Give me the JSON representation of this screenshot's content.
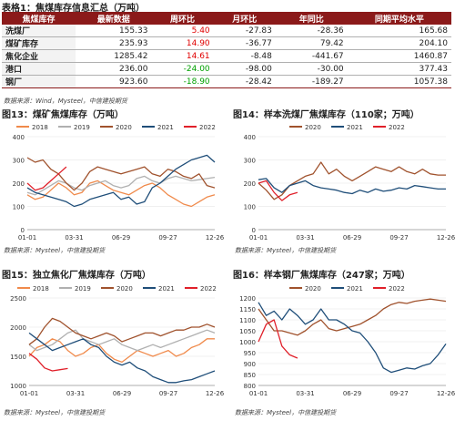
{
  "table": {
    "title": "表格1：焦煤库存信息汇总（万吨）",
    "headers": [
      "焦煤库存",
      "最新数据",
      "周环比",
      "月环比",
      "年同比",
      "同期平均水平"
    ],
    "rows": [
      {
        "name": "洗煤厂",
        "cells": [
          "155.33",
          "5.40",
          "-27.83",
          "-28.36",
          "165.68"
        ],
        "wow_color": "red"
      },
      {
        "name": "煤矿库存",
        "cells": [
          "235.93",
          "14.90",
          "-36.77",
          "79.42",
          "204.10"
        ],
        "wow_color": "red"
      },
      {
        "name": "焦化企业",
        "cells": [
          "1285.42",
          "14.61",
          "-8.48",
          "-441.67",
          "1460.87"
        ],
        "wow_color": "red"
      },
      {
        "name": "港口",
        "cells": [
          "236.00",
          "-24.00",
          "-98.00",
          "-30.00",
          "377.43"
        ],
        "wow_color": "green"
      },
      {
        "name": "钢厂",
        "cells": [
          "923.60",
          "-18.90",
          "-28.42",
          "-189.27",
          "1057.38"
        ],
        "wow_color": "green"
      }
    ],
    "source": "数据来源：Wind，Mysteel，中信建投期货"
  },
  "figures": [
    {
      "title": "图13：煤矿焦煤库存（万吨）",
      "source": "数据来源：Mysteel，中信建投期货"
    },
    {
      "title": "图14：样本洗煤厂焦煤库存（110家；万吨）",
      "source": "数据来源：Mysteel，中信建投期货"
    },
    {
      "title": "图15：独立焦化厂焦煤库存（万吨）",
      "source": "数据来源：Mysteel，中信建投期货"
    },
    {
      "title": "图16：样本钢厂焦煤库存（247家；万吨）",
      "source": "数据来源：Mysteel，中信建投期货"
    }
  ],
  "colors": {
    "2018": "#f08a4b",
    "2019": "#b0b0b0",
    "2020": "#a0522d",
    "2021": "#1f4e79",
    "2022": "#e0202a"
  },
  "chart_data": [
    {
      "id": "fig13",
      "type": "line",
      "x_ticks": [
        "01-01",
        "03-31",
        "06-29",
        "09-27",
        "12-26"
      ],
      "ylim": [
        0,
        400
      ],
      "y_ticks": [
        0,
        100,
        200,
        300,
        400
      ],
      "legend": [
        "2018",
        "2019",
        "2020",
        "2021",
        "2022"
      ],
      "legend_position": "top",
      "series": [
        {
          "name": "2018",
          "values": [
            150,
            130,
            140,
            170,
            200,
            180,
            150,
            160,
            200,
            210,
            190,
            170,
            160,
            150,
            170,
            190,
            200,
            180,
            150,
            130,
            110,
            100,
            120,
            140,
            150
          ]
        },
        {
          "name": "2019",
          "values": [
            160,
            150,
            170,
            190,
            210,
            200,
            180,
            170,
            190,
            200,
            210,
            190,
            180,
            190,
            220,
            230,
            210,
            200,
            220,
            230,
            220,
            210,
            215,
            220,
            225
          ]
        },
        {
          "name": "2020",
          "values": [
            310,
            290,
            300,
            260,
            240,
            200,
            170,
            200,
            250,
            270,
            260,
            250,
            240,
            250,
            260,
            270,
            240,
            230,
            260,
            250,
            230,
            220,
            240,
            190,
            180
          ]
        },
        {
          "name": "2021",
          "values": [
            180,
            160,
            150,
            140,
            130,
            120,
            100,
            110,
            130,
            140,
            150,
            160,
            130,
            140,
            110,
            120,
            180,
            200,
            230,
            260,
            280,
            300,
            310,
            320,
            290
          ]
        },
        {
          "name": "2022",
          "values": [
            200,
            170,
            180,
            210,
            240,
            270
          ]
        }
      ]
    },
    {
      "id": "fig14",
      "type": "line",
      "x_ticks": [
        "01-01",
        "03-31",
        "06-29",
        "09-27",
        "12-26"
      ],
      "ylim": [
        0,
        400
      ],
      "y_ticks": [
        0,
        100,
        200,
        300,
        400
      ],
      "legend": [
        "2020",
        "2021",
        "2022"
      ],
      "legend_position": "top",
      "series": [
        {
          "name": "2020",
          "values": [
            200,
            170,
            130,
            150,
            190,
            210,
            230,
            240,
            290,
            240,
            260,
            230,
            210,
            230,
            250,
            270,
            260,
            250,
            270,
            250,
            240,
            260,
            240,
            235,
            235
          ]
        },
        {
          "name": "2021",
          "values": [
            215,
            220,
            180,
            160,
            190,
            200,
            210,
            190,
            180,
            175,
            170,
            160,
            155,
            170,
            160,
            175,
            165,
            170,
            180,
            175,
            190,
            185,
            180,
            175,
            175
          ]
        },
        {
          "name": "2022",
          "values": [
            200,
            210,
            160,
            125,
            150,
            160
          ]
        }
      ]
    },
    {
      "id": "fig15",
      "type": "line",
      "x_ticks": [
        "01-01",
        "03-31",
        "06-29",
        "09-27",
        "12-26"
      ],
      "ylim": [
        1000,
        2500
      ],
      "y_ticks": [
        1000,
        1500,
        2000,
        2500
      ],
      "legend": [
        "2018",
        "2019",
        "2020",
        "2021",
        "2022"
      ],
      "legend_position": "top",
      "series": [
        {
          "name": "2018",
          "values": [
            1500,
            1650,
            1700,
            1800,
            1750,
            1600,
            1500,
            1550,
            1650,
            1700,
            1550,
            1450,
            1400,
            1500,
            1600,
            1550,
            1500,
            1550,
            1600,
            1500,
            1550,
            1650,
            1700,
            1800,
            1800
          ]
        },
        {
          "name": "2019",
          "values": [
            1700,
            1600,
            1650,
            1700,
            1800,
            1900,
            1950,
            1800,
            1750,
            1700,
            1750,
            1800,
            1700,
            1650,
            1600,
            1650,
            1700,
            1650,
            1700,
            1750,
            1800,
            1850,
            1900,
            1950,
            1900
          ]
        },
        {
          "name": "2020",
          "values": [
            1700,
            1800,
            2000,
            2150,
            2100,
            2000,
            1900,
            1850,
            1800,
            1850,
            1900,
            1850,
            1750,
            1800,
            1850,
            1900,
            1900,
            1850,
            1900,
            1950,
            1950,
            2000,
            2000,
            2050,
            2000
          ]
        },
        {
          "name": "2021",
          "values": [
            1900,
            1800,
            1700,
            1600,
            1650,
            1700,
            1750,
            1800,
            1700,
            1650,
            1500,
            1400,
            1350,
            1400,
            1300,
            1250,
            1150,
            1100,
            1050,
            1050,
            1080,
            1100,
            1150,
            1200,
            1250
          ]
        },
        {
          "name": "2022",
          "values": [
            1550,
            1450,
            1300,
            1250,
            1270,
            1290
          ]
        }
      ]
    },
    {
      "id": "fig16",
      "type": "line",
      "x_ticks": [
        "01-01",
        "03-31",
        "06-29",
        "09-27",
        "12-26"
      ],
      "ylim": [
        800,
        1200
      ],
      "y_ticks": [
        800,
        850,
        900,
        950,
        1000,
        1050,
        1100,
        1150,
        1200
      ],
      "legend": [
        "2020",
        "2021",
        "2022"
      ],
      "legend_position": "top",
      "series": [
        {
          "name": "2020",
          "values": [
            1150,
            1100,
            1050,
            1050,
            1040,
            1030,
            1050,
            1080,
            1100,
            1060,
            1050,
            1060,
            1070,
            1080,
            1100,
            1120,
            1150,
            1170,
            1180,
            1175,
            1185,
            1190,
            1195,
            1190,
            1185
          ]
        },
        {
          "name": "2021",
          "values": [
            1180,
            1120,
            1140,
            1100,
            1150,
            1120,
            1080,
            1100,
            1150,
            1100,
            1100,
            1080,
            1050,
            1040,
            1000,
            950,
            880,
            860,
            870,
            880,
            875,
            890,
            900,
            940,
            990
          ]
        },
        {
          "name": "2022",
          "values": [
            1000,
            1080,
            1100,
            980,
            940,
            925
          ]
        }
      ]
    }
  ]
}
